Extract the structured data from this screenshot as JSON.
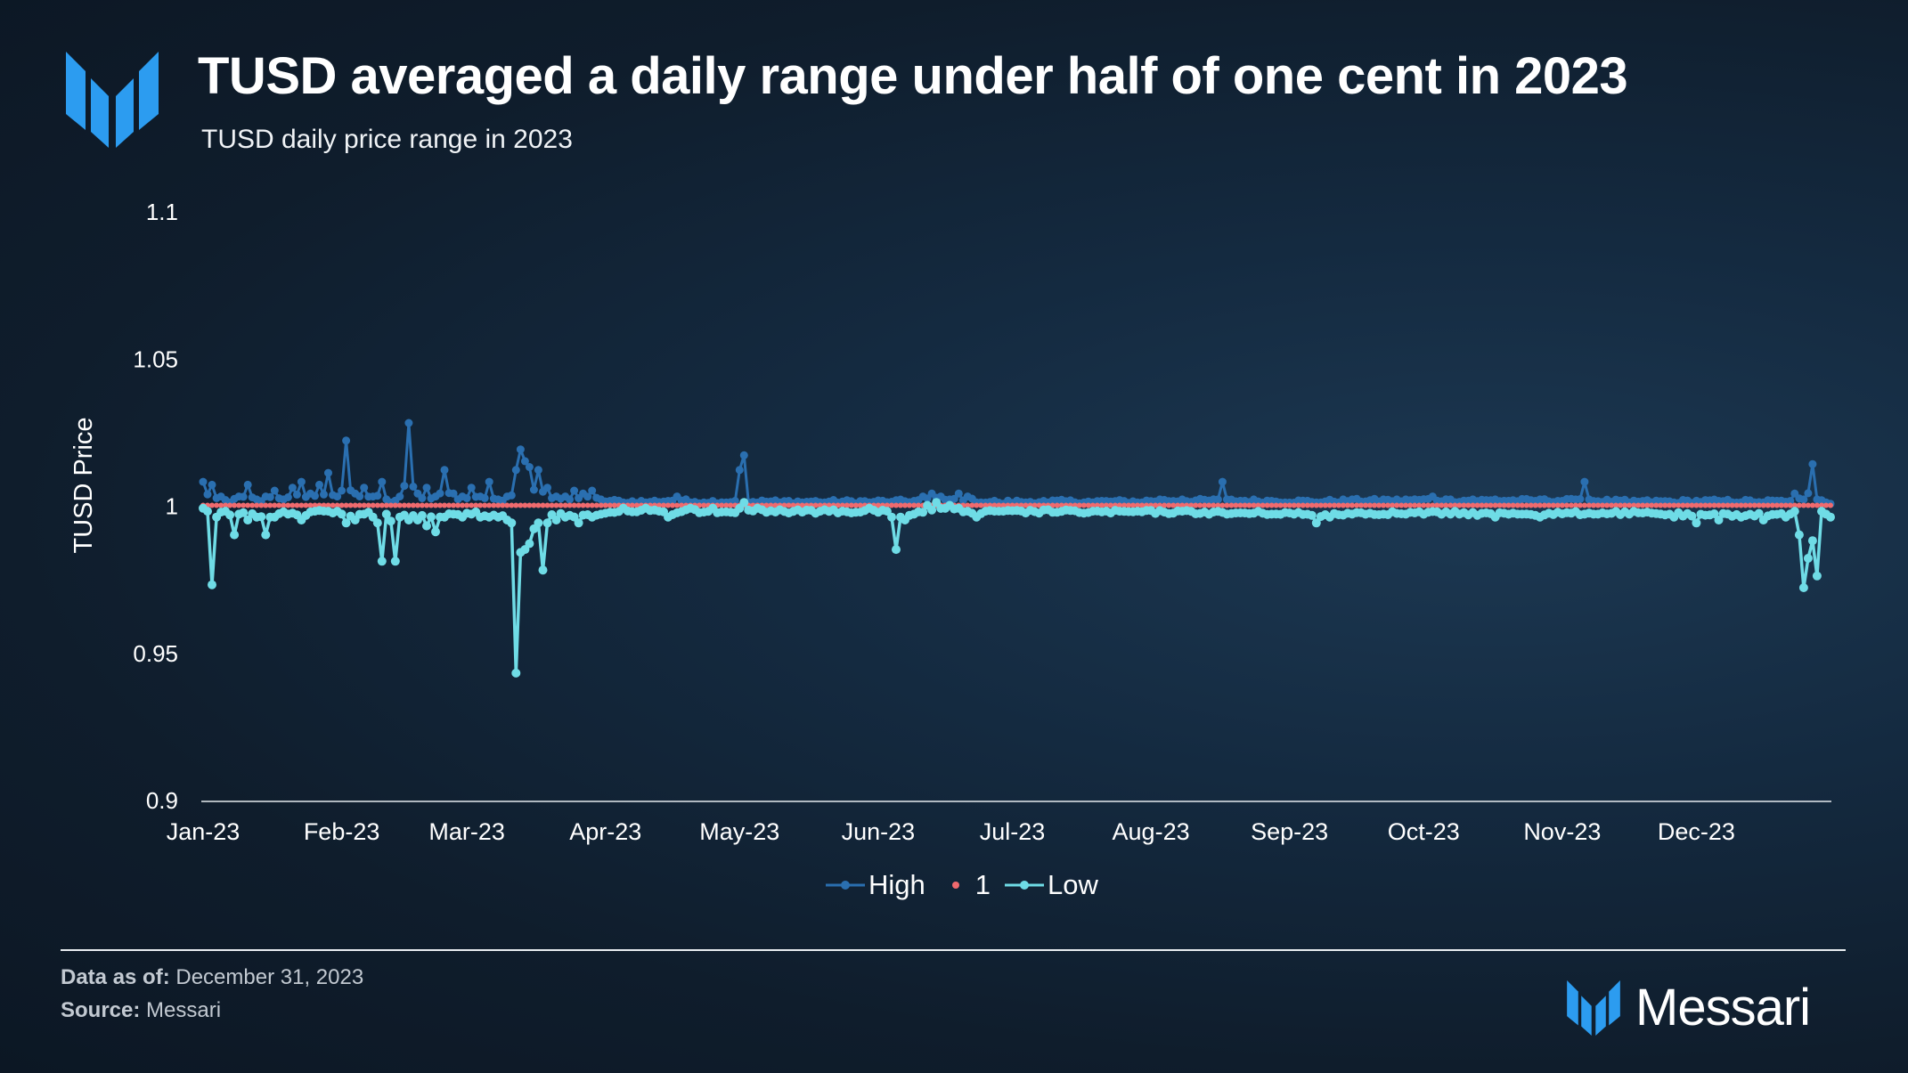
{
  "header": {
    "title": "TUSD averaged a daily range under half of one cent in 2023",
    "subtitle": "TUSD daily price range in 2023",
    "logo_icon": "messari-logo-icon"
  },
  "footer": {
    "data_as_of_label": "Data as of:",
    "data_as_of_value": "December 31, 2023",
    "source_label": "Source:",
    "source_value": "Messari",
    "brand_name": "Messari"
  },
  "colors": {
    "high": "#2a6fb0",
    "one": "#f06a6e",
    "low": "#6fdce6",
    "brand_blue": "#2c9cf0"
  },
  "chart_data": {
    "type": "line",
    "title": "",
    "xlabel": "",
    "ylabel": "TUSD Price",
    "ylim": [
      0.9,
      1.1
    ],
    "yticks": [
      "0.9",
      "0.95",
      "1",
      "1.05",
      "1.1"
    ],
    "xticks": [
      "Jan-23",
      "Feb-23",
      "Mar-23",
      "Apr-23",
      "May-23",
      "Jun-23",
      "Jul-23",
      "Aug-23",
      "Sep-23",
      "Oct-23",
      "Nov-23",
      "Dec-23"
    ],
    "xtick_days": [
      1,
      32,
      60,
      91,
      121,
      152,
      182,
      213,
      244,
      274,
      305,
      335
    ],
    "legend": "bottom-center",
    "grid": false,
    "series": [
      {
        "name": "High",
        "color": "#2a6fb0",
        "base": 1.0005,
        "points": [
          [
            1,
            1.008
          ],
          [
            3,
            1.007
          ],
          [
            5,
            1.003
          ],
          [
            7,
            1.001
          ],
          [
            9,
            1.003
          ],
          [
            11,
            1.007
          ],
          [
            13,
            1.002
          ],
          [
            15,
            1.003
          ],
          [
            17,
            1.005
          ],
          [
            19,
            1.002
          ],
          [
            21,
            1.006
          ],
          [
            23,
            1.008
          ],
          [
            25,
            1.004
          ],
          [
            27,
            1.007
          ],
          [
            29,
            1.011
          ],
          [
            31,
            1.003
          ],
          [
            33,
            1.022
          ],
          [
            35,
            1.004
          ],
          [
            37,
            1.006
          ],
          [
            39,
            1.003
          ],
          [
            41,
            1.008
          ],
          [
            43,
            1.001
          ],
          [
            45,
            1.003
          ],
          [
            47,
            1.028
          ],
          [
            49,
            1.004
          ],
          [
            51,
            1.006
          ],
          [
            53,
            1.003
          ],
          [
            55,
            1.012
          ],
          [
            57,
            1.004
          ],
          [
            59,
            1.003
          ],
          [
            61,
            1.006
          ],
          [
            63,
            1.003
          ],
          [
            65,
            1.008
          ],
          [
            67,
            1.002
          ],
          [
            69,
            1.003
          ],
          [
            71,
            1.012
          ],
          [
            72,
            1.019
          ],
          [
            73,
            1.015
          ],
          [
            74,
            1.013
          ],
          [
            76,
            1.012
          ],
          [
            78,
            1.006
          ],
          [
            80,
            1.003
          ],
          [
            82,
            1.003
          ],
          [
            84,
            1.005
          ],
          [
            86,
            1.004
          ],
          [
            88,
            1.005
          ],
          [
            90,
            1.002
          ],
          [
            95,
            1.001
          ],
          [
            100,
            1.001
          ],
          [
            105,
            1.0015
          ],
          [
            107,
            1.003
          ],
          [
            110,
            1.001
          ],
          [
            118,
            1.001
          ],
          [
            120,
            1.0015
          ],
          [
            121,
            1.012
          ],
          [
            122,
            1.017
          ],
          [
            123,
            1.001
          ],
          [
            130,
            1.001
          ],
          [
            135,
            1.001
          ],
          [
            140,
            1.001
          ],
          [
            150,
            1.001
          ],
          [
            155,
            1.0012
          ],
          [
            160,
            1.0015
          ],
          [
            162,
            1.003
          ],
          [
            164,
            1.004
          ],
          [
            166,
            1.003
          ],
          [
            168,
            1.002
          ],
          [
            170,
            1.004
          ],
          [
            172,
            1.003
          ],
          [
            175,
            1.001
          ],
          [
            180,
            1.0005
          ],
          [
            185,
            1.001
          ],
          [
            190,
            1.001
          ],
          [
            200,
            1.001
          ],
          [
            210,
            1.001
          ],
          [
            215,
            1.002
          ],
          [
            220,
            1.002
          ],
          [
            228,
            1.002
          ],
          [
            229,
            1.008
          ],
          [
            230,
            1.002
          ],
          [
            240,
            1.0015
          ],
          [
            250,
            1.001
          ],
          [
            258,
            1.002
          ],
          [
            265,
            1.002
          ],
          [
            270,
            1.002
          ],
          [
            276,
            1.003
          ],
          [
            280,
            1.002
          ],
          [
            285,
            1.002
          ],
          [
            290,
            1.002
          ],
          [
            300,
            1.002
          ],
          [
            308,
            1.002
          ],
          [
            310,
            1.008
          ],
          [
            311,
            1.002
          ],
          [
            320,
            1.001
          ],
          [
            330,
            1.001
          ],
          [
            340,
            1.0015
          ],
          [
            350,
            1.001
          ],
          [
            355,
            1.0012
          ],
          [
            357,
            1.004
          ],
          [
            359,
            1.002
          ],
          [
            361,
            1.014
          ],
          [
            362,
            1.002
          ],
          [
            364,
            1.001
          ],
          [
            365,
            1.0005
          ]
        ]
      },
      {
        "name": "1",
        "color": "#f06a6e",
        "constant": 1.0
      },
      {
        "name": "Low",
        "color": "#6fdce6",
        "base": 0.9985,
        "points": [
          [
            1,
            0.999
          ],
          [
            2,
            0.998
          ],
          [
            3,
            0.973
          ],
          [
            4,
            0.996
          ],
          [
            6,
            0.998
          ],
          [
            8,
            0.99
          ],
          [
            9,
            0.997
          ],
          [
            11,
            0.995
          ],
          [
            13,
            0.996
          ],
          [
            15,
            0.99
          ],
          [
            17,
            0.996
          ],
          [
            20,
            0.997
          ],
          [
            23,
            0.995
          ],
          [
            26,
            0.998
          ],
          [
            29,
            0.998
          ],
          [
            31,
            0.998
          ],
          [
            33,
            0.994
          ],
          [
            35,
            0.995
          ],
          [
            37,
            0.997
          ],
          [
            39,
            0.996
          ],
          [
            41,
            0.981
          ],
          [
            42,
            0.997
          ],
          [
            44,
            0.981
          ],
          [
            45,
            0.996
          ],
          [
            47,
            0.995
          ],
          [
            49,
            0.995
          ],
          [
            51,
            0.993
          ],
          [
            53,
            0.991
          ],
          [
            55,
            0.996
          ],
          [
            57,
            0.997
          ],
          [
            59,
            0.996
          ],
          [
            61,
            0.997
          ],
          [
            63,
            0.996
          ],
          [
            65,
            0.996
          ],
          [
            67,
            0.996
          ],
          [
            69,
            0.995
          ],
          [
            70,
            0.994
          ],
          [
            71,
            0.943
          ],
          [
            72,
            0.984
          ],
          [
            73,
            0.985
          ],
          [
            74,
            0.987
          ],
          [
            75,
            0.992
          ],
          [
            76,
            0.994
          ],
          [
            77,
            0.978
          ],
          [
            78,
            0.994
          ],
          [
            80,
            0.995
          ],
          [
            82,
            0.996
          ],
          [
            85,
            0.994
          ],
          [
            88,
            0.996
          ],
          [
            90,
            0.997
          ],
          [
            95,
            0.999
          ],
          [
            100,
            0.999
          ],
          [
            103,
            0.998
          ],
          [
            105,
            0.996
          ],
          [
            110,
            0.999
          ],
          [
            115,
            0.999
          ],
          [
            121,
            0.999
          ],
          [
            122,
            1.001
          ],
          [
            125,
            0.999
          ],
          [
            130,
            0.9985
          ],
          [
            140,
            0.9985
          ],
          [
            150,
            0.999
          ],
          [
            154,
            0.998
          ],
          [
            156,
            0.985
          ],
          [
            157,
            0.996
          ],
          [
            158,
            0.995
          ],
          [
            160,
            0.997
          ],
          [
            163,
            1.0
          ],
          [
            165,
            1.001
          ],
          [
            168,
            1.0
          ],
          [
            170,
            0.999
          ],
          [
            172,
            0.998
          ],
          [
            174,
            0.996
          ],
          [
            176,
            0.998
          ],
          [
            180,
            0.998
          ],
          [
            190,
            0.9985
          ],
          [
            200,
            0.998
          ],
          [
            210,
            0.998
          ],
          [
            220,
            0.998
          ],
          [
            230,
            0.997
          ],
          [
            240,
            0.997
          ],
          [
            245,
            0.997
          ],
          [
            250,
            0.994
          ],
          [
            253,
            0.996
          ],
          [
            258,
            0.997
          ],
          [
            265,
            0.997
          ],
          [
            270,
            0.997
          ],
          [
            280,
            0.997
          ],
          [
            290,
            0.996
          ],
          [
            295,
            0.997
          ],
          [
            300,
            0.996
          ],
          [
            310,
            0.997
          ],
          [
            320,
            0.997
          ],
          [
            330,
            0.996
          ],
          [
            335,
            0.994
          ],
          [
            340,
            0.995
          ],
          [
            345,
            0.996
          ],
          [
            350,
            0.995
          ],
          [
            355,
            0.996
          ],
          [
            357,
            0.998
          ],
          [
            358,
            0.99
          ],
          [
            359,
            0.972
          ],
          [
            360,
            0.982
          ],
          [
            361,
            0.988
          ],
          [
            362,
            0.976
          ],
          [
            363,
            0.998
          ],
          [
            364,
            0.997
          ],
          [
            365,
            0.996
          ]
        ]
      }
    ]
  }
}
